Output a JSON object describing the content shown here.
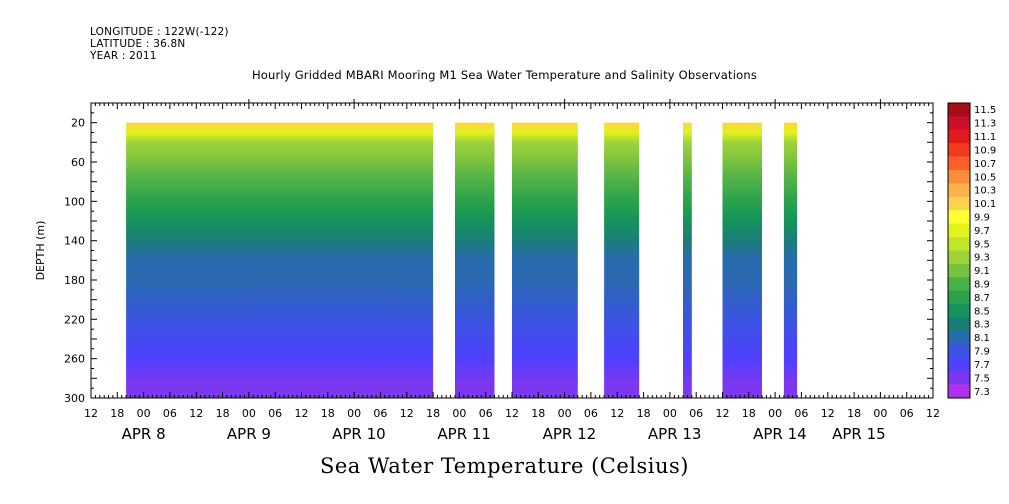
{
  "header": {
    "longitude": "LONGITUDE : 122W(-122)",
    "latitude": "LATITUDE : 36.8N",
    "year": "YEAR : 2011",
    "title": "Hourly Gridded MBARI Mooring M1 Sea Water Temperature and Salinity Observations",
    "subtitle": "Sea Water Temperature (Celsius)"
  },
  "chart_data": {
    "type": "heatmap",
    "title": "Hourly Gridded MBARI Mooring M1 Sea Water Temperature and Salinity Observations",
    "colorbar_label": "Sea Water Temperature (Celsius)",
    "ylabel": "DEPTH (m)",
    "y_axis": {
      "range": [
        300,
        0
      ],
      "inverted": true,
      "ticks": [
        20,
        60,
        100,
        140,
        180,
        220,
        260,
        300
      ]
    },
    "x_axis": {
      "range_hours": [
        "2011-04-07T12:00",
        "2011-04-15T12:00"
      ],
      "hour_ticks": [
        "12",
        "18",
        "00",
        "06",
        "12",
        "18",
        "00",
        "06",
        "12",
        "18",
        "00",
        "06",
        "12",
        "18",
        "00",
        "06",
        "12",
        "18",
        "00",
        "06",
        "12",
        "18",
        "00",
        "06",
        "12",
        "18",
        "00",
        "06",
        "12",
        "18",
        "00",
        "06",
        "12"
      ],
      "date_labels": [
        {
          "label": "APR  8",
          "hour": 12
        },
        {
          "label": "APR  9",
          "hour": 36
        },
        {
          "label": "APR 10",
          "hour": 60
        },
        {
          "label": "APR 11",
          "hour": 84
        },
        {
          "label": "APR 12",
          "hour": 108
        },
        {
          "label": "APR 13",
          "hour": 132
        },
        {
          "label": "APR 14",
          "hour": 156
        },
        {
          "label": "APR 15",
          "hour": 174
        }
      ]
    },
    "data_segments_hours": [
      [
        8,
        78
      ],
      [
        83,
        92
      ],
      [
        96,
        111
      ],
      [
        117,
        125
      ],
      [
        135,
        137
      ],
      [
        144,
        153
      ],
      [
        158,
        161
      ]
    ],
    "depth_profile": [
      {
        "depth": 20,
        "temp": 10.2
      },
      {
        "depth": 30,
        "temp": 9.6
      },
      {
        "depth": 40,
        "temp": 9.3
      },
      {
        "depth": 60,
        "temp": 9.1
      },
      {
        "depth": 80,
        "temp": 8.9
      },
      {
        "depth": 100,
        "temp": 8.6
      },
      {
        "depth": 120,
        "temp": 8.4
      },
      {
        "depth": 140,
        "temp": 8.25
      },
      {
        "depth": 160,
        "temp": 8.1
      },
      {
        "depth": 180,
        "temp": 8.0
      },
      {
        "depth": 220,
        "temp": 7.85
      },
      {
        "depth": 260,
        "temp": 7.7
      },
      {
        "depth": 285,
        "temp": 7.55
      },
      {
        "depth": 300,
        "temp": 7.45
      }
    ],
    "colorbar": {
      "levels": [
        "11.5",
        "11.3",
        "11.1",
        "10.9",
        "10.7",
        "10.5",
        "10.3",
        "10.1",
        "9.9",
        "9.7",
        "9.5",
        "9.3",
        "9.1",
        "8.9",
        "8.7",
        "8.5",
        "8.3",
        "8.1",
        "7.9",
        "7.7",
        "7.5",
        "7.3"
      ],
      "colors": [
        "#a50f15",
        "#c8102e",
        "#e31a1c",
        "#f03b20",
        "#fd5e2a",
        "#fd8d3c",
        "#feb24c",
        "#fed24c",
        "#ffff33",
        "#e3f21a",
        "#c2e627",
        "#9fd33a",
        "#78c13e",
        "#4cb049",
        "#2aa24b",
        "#14935a",
        "#1a7e78",
        "#2a6ab0",
        "#3a55e0",
        "#5040ff",
        "#7b38f0",
        "#b030f0"
      ]
    }
  }
}
